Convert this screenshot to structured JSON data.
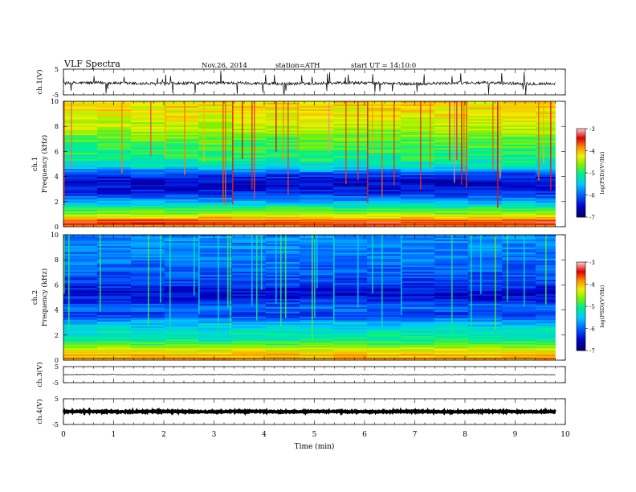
{
  "header": {
    "title": "VLF Spectra",
    "date": "Nov.26, 2014",
    "station": "station=ATH",
    "start": "start UT =   14:10:0"
  },
  "chart_data": [
    {
      "type": "line",
      "panel": "ch1-waveform",
      "ylabel": "ch.1(V)",
      "yticks": [
        "5",
        "-5"
      ],
      "ylim": [
        -5,
        5
      ],
      "xlim": [
        0,
        10
      ],
      "data_end_min": 9.8,
      "baseline_v": -0.5,
      "noise_v": 0.6
    },
    {
      "type": "heatmap",
      "panel": "ch1-spectrogram",
      "ylabel": "Frequency (kHz)",
      "chlabel": "ch.1",
      "yticks": [
        "0",
        "2",
        "4",
        "6",
        "8",
        "10"
      ],
      "ylim": [
        0,
        10
      ],
      "xlim": [
        0,
        10
      ],
      "data_end_min": 9.8,
      "colorbar": {
        "label": "log(PSD)(V²/Hz)",
        "ticks": [
          "-3",
          "-4",
          "-5",
          "-6",
          "-7"
        ],
        "range": [
          -7,
          -3
        ]
      },
      "profile_khz": [
        [
          0.0,
          -4.0
        ],
        [
          0.3,
          -3.3
        ],
        [
          0.6,
          -3.8
        ],
        [
          1.0,
          -4.6
        ],
        [
          1.5,
          -5.0
        ],
        [
          2.0,
          -5.6
        ],
        [
          2.6,
          -6.2
        ],
        [
          3.0,
          -6.4
        ],
        [
          3.6,
          -6.5
        ],
        [
          4.2,
          -6.1
        ],
        [
          4.8,
          -5.3
        ],
        [
          5.3,
          -5.0
        ],
        [
          6.0,
          -4.9
        ],
        [
          7.0,
          -4.7
        ],
        [
          8.0,
          -4.4
        ],
        [
          9.0,
          -4.2
        ],
        [
          10.0,
          -4.1
        ]
      ]
    },
    {
      "type": "heatmap",
      "panel": "ch2-spectrogram",
      "ylabel": "Frequency (kHz)",
      "chlabel": "ch.2",
      "yticks": [
        "0",
        "2",
        "4",
        "6",
        "8",
        "10"
      ],
      "ylim": [
        0,
        10
      ],
      "xlim": [
        0,
        10
      ],
      "data_end_min": 9.8,
      "colorbar": {
        "label": "log(PSD)(V²/Hz)",
        "ticks": [
          "-3",
          "-4",
          "-5",
          "-6",
          "-7"
        ],
        "range": [
          -7,
          -3
        ]
      },
      "profile_khz": [
        [
          0.0,
          -4.2
        ],
        [
          0.5,
          -4.1
        ],
        [
          1.0,
          -4.6
        ],
        [
          1.6,
          -5.1
        ],
        [
          2.2,
          -5.2
        ],
        [
          3.0,
          -5.6
        ],
        [
          3.6,
          -6.2
        ],
        [
          4.2,
          -5.9
        ],
        [
          4.8,
          -6.3
        ],
        [
          5.4,
          -6.5
        ],
        [
          6.0,
          -6.2
        ],
        [
          7.0,
          -6.0
        ],
        [
          8.0,
          -5.9
        ],
        [
          9.0,
          -5.8
        ],
        [
          10.0,
          -5.8
        ]
      ]
    },
    {
      "type": "line",
      "panel": "ch3-waveform",
      "ylabel": "ch.3(V)",
      "yticks": [
        "5",
        "-5"
      ],
      "ylim": [
        -5,
        5
      ],
      "xlim": [
        0,
        10
      ],
      "data_end_min": 9.8,
      "baseline_v": 0.0,
      "noise_v": 0.15
    },
    {
      "type": "line",
      "panel": "ch4-waveform",
      "ylabel": "ch.4(V)",
      "yticks": [
        "5",
        "-5"
      ],
      "ylim": [
        -5,
        5
      ],
      "xlim": [
        0,
        10
      ],
      "xlabel": "Time (min)",
      "xticks": [
        "0",
        "1",
        "2",
        "3",
        "4",
        "5",
        "6",
        "7",
        "8",
        "9",
        "10"
      ],
      "data_end_min": 9.8,
      "baseline_v": 0.0,
      "noise_v": 0.2
    }
  ]
}
